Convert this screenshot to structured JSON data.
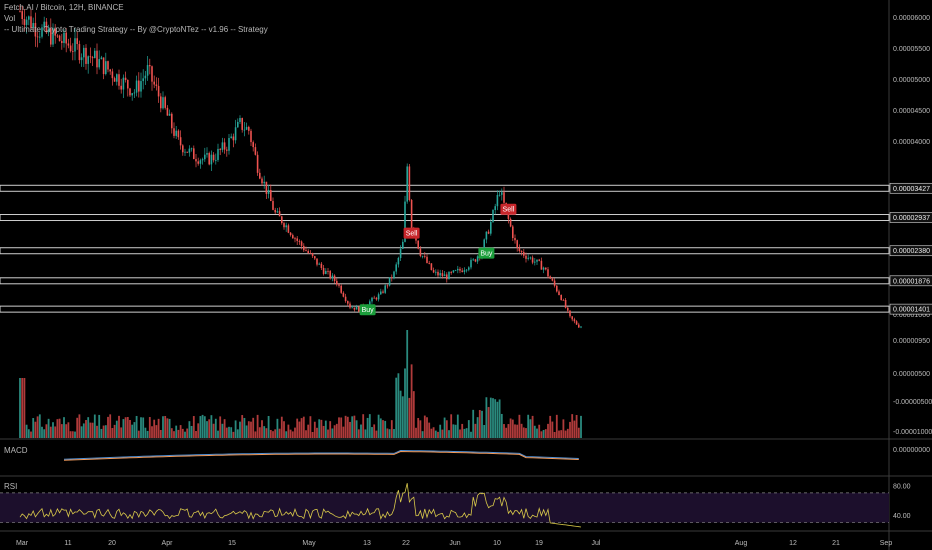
{
  "header": {
    "symbol_line": "Fetch.AI / Bitcoin, 12H, BINANCE",
    "vol_label": "Vol",
    "strategy_line": "-- Ultimate Crypto Trading Strategy -- By @CryptoNTez -- v1.96 -- Strategy"
  },
  "panes": {
    "macd_label": "MACD",
    "rsi_label": "RSI"
  },
  "colors": {
    "up": "#26a69a",
    "down": "#ef5350",
    "vol_up": "#2a8a7e",
    "vol_down": "#b03b3b",
    "macd_line": "#4f8fd4",
    "signal_line": "#f29a5a",
    "rsi_line": "#d9c94a",
    "rsi_band": "#1c0f2c",
    "sr_band": "#cfcfcf",
    "buy": "#1b9e3b",
    "sell": "#c8262b"
  },
  "chart_data": [
    {
      "type": "candlestick",
      "ylim": [
        8e-06,
        6.2e-06
      ],
      "y_ticks": [
        "0.00006000",
        "0.00005500",
        "0.00005000",
        "0.00004500",
        "0.00004000",
        "0.00001000"
      ],
      "close_path": [
        [
          0,
          6.4e-05
        ],
        [
          8,
          6.1e-05
        ],
        [
          16,
          5.95e-05
        ],
        [
          24,
          5.8e-05
        ],
        [
          34,
          5.6e-05
        ],
        [
          44,
          5.3e-05
        ],
        [
          52,
          5.05e-05
        ],
        [
          58,
          5.4e-05
        ],
        [
          64,
          4.9e-05
        ],
        [
          72,
          4.2e-05
        ],
        [
          78,
          4e-05
        ],
        [
          84,
          3.9e-05
        ],
        [
          88,
          3.95e-05
        ],
        [
          94,
          4.15e-05
        ],
        [
          100,
          4.5e-05
        ],
        [
          104,
          4.4e-05
        ],
        [
          108,
          3.8e-05
        ],
        [
          112,
          3.4e-05
        ],
        [
          116,
          3e-05
        ],
        [
          120,
          2.85e-05
        ],
        [
          126,
          2.55e-05
        ],
        [
          132,
          2.3e-05
        ],
        [
          138,
          2.05e-05
        ],
        [
          144,
          1.85e-05
        ],
        [
          150,
          1.45e-05
        ],
        [
          154,
          1.4e-05
        ],
        [
          160,
          1.55e-05
        ],
        [
          164,
          1.65e-05
        ],
        [
          170,
          2e-05
        ],
        [
          174,
          2.5e-05
        ],
        [
          176,
          3.8e-05
        ],
        [
          178,
          2.8e-05
        ],
        [
          182,
          2.35e-05
        ],
        [
          188,
          2e-05
        ],
        [
          194,
          1.95e-05
        ],
        [
          200,
          2.05e-05
        ],
        [
          206,
          2.2e-05
        ],
        [
          210,
          2.4e-05
        ],
        [
          214,
          2.85e-05
        ],
        [
          218,
          3.4e-05
        ],
        [
          222,
          2.9e-05
        ],
        [
          226,
          2.4e-05
        ],
        [
          232,
          2.25e-05
        ],
        [
          238,
          2.1e-05
        ],
        [
          242,
          1.85e-05
        ],
        [
          246,
          1.6e-05
        ],
        [
          250,
          1.25e-05
        ],
        [
          254,
          1.12e-05
        ]
      ],
      "sr_levels": [
        {
          "value": 3.427e-05,
          "label": "0.00003427"
        },
        {
          "value": 2.937e-05,
          "label": "0.00002937"
        },
        {
          "value": 2.38e-05,
          "label": "0.00002380"
        },
        {
          "value": 1.876e-05,
          "label": "0.00001876"
        },
        {
          "value": 1.401e-05,
          "label": "0.00001401"
        }
      ],
      "signals": [
        {
          "label": "Buy",
          "kind": "buy",
          "bar": 158,
          "value": 1.55e-05
        },
        {
          "label": "Sell",
          "kind": "sell",
          "bar": 178,
          "value": 2.5e-05
        },
        {
          "label": "Buy",
          "kind": "buy",
          "bar": 212,
          "value": 2.5e-05
        },
        {
          "label": "Sell",
          "kind": "sell",
          "bar": 222,
          "value": 2.9e-05
        }
      ]
    },
    {
      "type": "bar",
      "name": "Vol",
      "y_ticks": [
        "0.00000950",
        "0.00000500",
        "-0.00000500",
        "-0.00001000"
      ]
    },
    {
      "type": "line",
      "name": "MACD",
      "y_ticks": [
        "0.00000000"
      ]
    },
    {
      "type": "line",
      "name": "RSI",
      "ylim": [
        20,
        90
      ],
      "y_ticks": [
        "80.00",
        "40.00"
      ],
      "band": [
        30,
        70
      ]
    }
  ],
  "x_axis": {
    "labels": [
      "Mar",
      "11",
      "20",
      "Apr",
      "15",
      "May",
      "13",
      "22",
      "Jun",
      "10",
      "19",
      "Jul",
      "Aug",
      "12",
      "21",
      "Sep"
    ]
  }
}
